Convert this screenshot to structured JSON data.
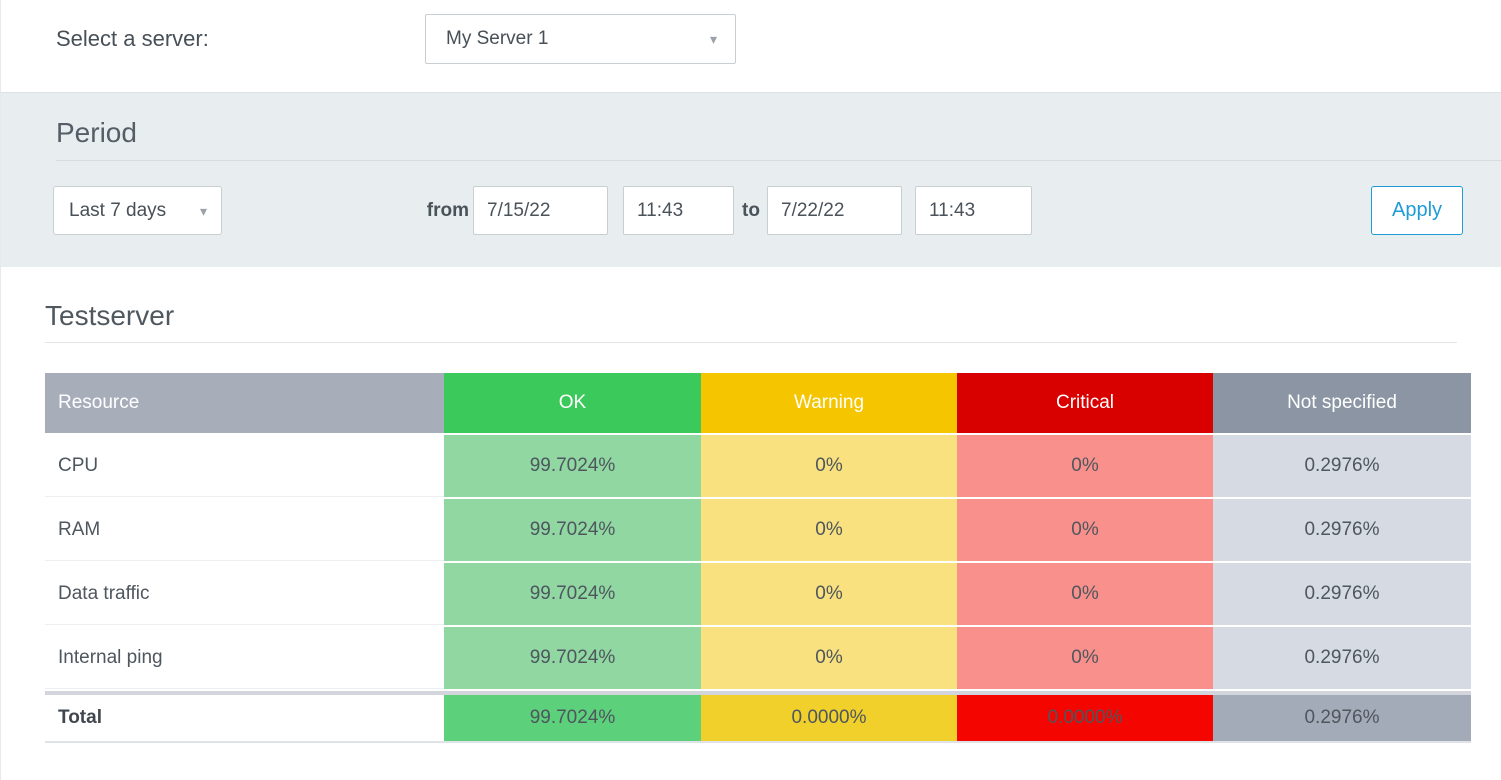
{
  "server_select": {
    "label": "Select a server:",
    "value": "My Server 1"
  },
  "period": {
    "title": "Period",
    "range_value": "Last 7 days",
    "from_label": "from",
    "to_label": "to",
    "from_date": "7/15/22",
    "from_time": "11:43",
    "to_date": "7/22/22",
    "to_time": "11:43",
    "apply_label": "Apply"
  },
  "report": {
    "title": "Testserver",
    "table": {
      "headers": [
        "Resource",
        "OK",
        "Warning",
        "Critical",
        "Not specified"
      ],
      "rows": [
        {
          "resource": "CPU",
          "ok": "99.7024%",
          "warning": "0%",
          "critical": "0%",
          "not_specified": "0.2976%"
        },
        {
          "resource": "RAM",
          "ok": "99.7024%",
          "warning": "0%",
          "critical": "0%",
          "not_specified": "0.2976%"
        },
        {
          "resource": "Data traffic",
          "ok": "99.7024%",
          "warning": "0%",
          "critical": "0%",
          "not_specified": "0.2976%"
        },
        {
          "resource": "Internal ping",
          "ok": "99.7024%",
          "warning": "0%",
          "critical": "0%",
          "not_specified": "0.2976%"
        }
      ],
      "total_row": {
        "resource": "Total",
        "ok": "99.7024%",
        "warning": "0.0000%",
        "critical": "0.0000%",
        "not_specified": "0.2976%"
      }
    }
  },
  "icons": {
    "dropdown_caret": "▾"
  },
  "colors": {
    "section_bg": "#e8edf0",
    "accent_blue": "#1e9cd7",
    "header_resource": "#a7aeba",
    "header_ok": "#3bc95b",
    "header_warning": "#f5c500",
    "header_critical": "#d90000",
    "header_not_specified": "#8c95a4",
    "cell_ok": "#90d7a2",
    "cell_warning": "#f8e17e",
    "cell_critical": "#f9908c",
    "cell_not_specified": "#d6dae2",
    "total_ok": "#5dd07b",
    "total_warning": "#f2d02b",
    "total_critical": "#f50500",
    "total_not_specified": "#a4abb8"
  }
}
